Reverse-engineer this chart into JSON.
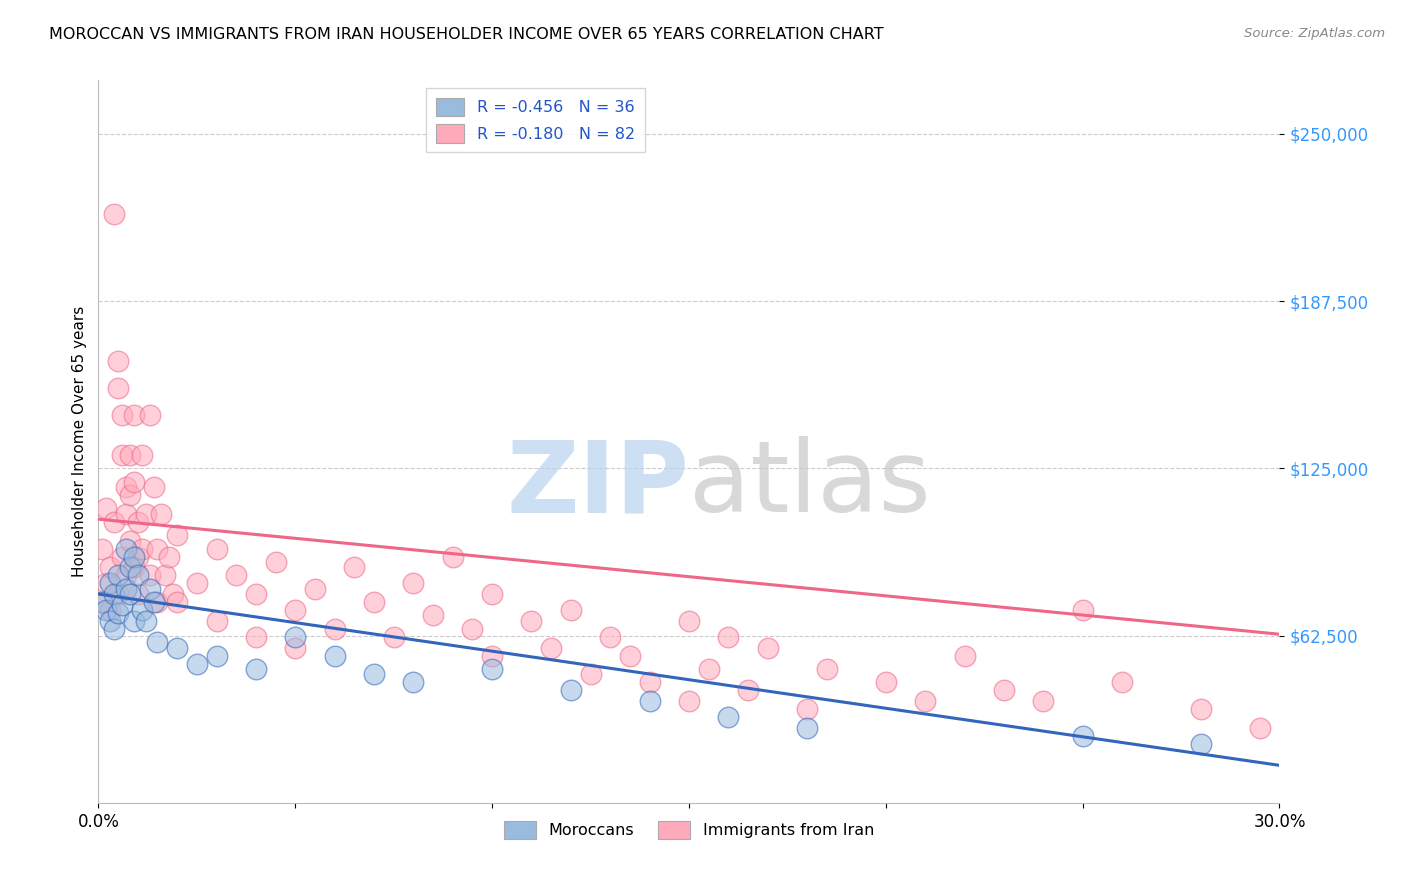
{
  "title": "MOROCCAN VS IMMIGRANTS FROM IRAN HOUSEHOLDER INCOME OVER 65 YEARS CORRELATION CHART",
  "source": "Source: ZipAtlas.com",
  "ylabel": "Householder Income Over 65 years",
  "yticks": [
    62500,
    125000,
    187500,
    250000
  ],
  "ytick_labels": [
    "$62,500",
    "$125,000",
    "$187,500",
    "$250,000"
  ],
  "xlim": [
    0.0,
    0.3
  ],
  "ylim": [
    0,
    270000
  ],
  "legend_blue_R": "R = -0.456",
  "legend_blue_N": "N = 36",
  "legend_pink_R": "R = -0.180",
  "legend_pink_N": "N = 82",
  "blue_color": "#99bbdd",
  "pink_color": "#ffaabb",
  "blue_line_color": "#3366bb",
  "pink_line_color": "#ee6688",
  "blue_reg": [
    0.0,
    0.3,
    78000,
    14000
  ],
  "pink_reg": [
    0.0,
    0.3,
    106000,
    63000
  ],
  "blue_scatter": [
    [
      0.001,
      75000
    ],
    [
      0.002,
      72000
    ],
    [
      0.003,
      68000
    ],
    [
      0.003,
      82000
    ],
    [
      0.004,
      78000
    ],
    [
      0.004,
      65000
    ],
    [
      0.005,
      71000
    ],
    [
      0.005,
      85000
    ],
    [
      0.006,
      74000
    ],
    [
      0.007,
      80000
    ],
    [
      0.007,
      95000
    ],
    [
      0.008,
      88000
    ],
    [
      0.008,
      78000
    ],
    [
      0.009,
      92000
    ],
    [
      0.009,
      68000
    ],
    [
      0.01,
      85000
    ],
    [
      0.011,
      72000
    ],
    [
      0.012,
      68000
    ],
    [
      0.013,
      80000
    ],
    [
      0.014,
      75000
    ],
    [
      0.015,
      60000
    ],
    [
      0.02,
      58000
    ],
    [
      0.025,
      52000
    ],
    [
      0.03,
      55000
    ],
    [
      0.04,
      50000
    ],
    [
      0.05,
      62000
    ],
    [
      0.06,
      55000
    ],
    [
      0.07,
      48000
    ],
    [
      0.08,
      45000
    ],
    [
      0.1,
      50000
    ],
    [
      0.12,
      42000
    ],
    [
      0.14,
      38000
    ],
    [
      0.16,
      32000
    ],
    [
      0.18,
      28000
    ],
    [
      0.25,
      25000
    ],
    [
      0.28,
      22000
    ]
  ],
  "pink_scatter": [
    [
      0.001,
      95000
    ],
    [
      0.001,
      75000
    ],
    [
      0.002,
      110000
    ],
    [
      0.002,
      82000
    ],
    [
      0.003,
      88000
    ],
    [
      0.003,
      72000
    ],
    [
      0.004,
      220000
    ],
    [
      0.004,
      105000
    ],
    [
      0.005,
      165000
    ],
    [
      0.005,
      78000
    ],
    [
      0.005,
      155000
    ],
    [
      0.006,
      145000
    ],
    [
      0.006,
      92000
    ],
    [
      0.006,
      130000
    ],
    [
      0.007,
      118000
    ],
    [
      0.007,
      85000
    ],
    [
      0.007,
      108000
    ],
    [
      0.008,
      98000
    ],
    [
      0.008,
      115000
    ],
    [
      0.008,
      130000
    ],
    [
      0.009,
      145000
    ],
    [
      0.009,
      88000
    ],
    [
      0.009,
      120000
    ],
    [
      0.01,
      105000
    ],
    [
      0.01,
      92000
    ],
    [
      0.01,
      78000
    ],
    [
      0.011,
      130000
    ],
    [
      0.011,
      95000
    ],
    [
      0.012,
      108000
    ],
    [
      0.013,
      85000
    ],
    [
      0.013,
      145000
    ],
    [
      0.014,
      118000
    ],
    [
      0.015,
      95000
    ],
    [
      0.015,
      75000
    ],
    [
      0.016,
      108000
    ],
    [
      0.017,
      85000
    ],
    [
      0.018,
      92000
    ],
    [
      0.019,
      78000
    ],
    [
      0.02,
      100000
    ],
    [
      0.02,
      75000
    ],
    [
      0.025,
      82000
    ],
    [
      0.03,
      95000
    ],
    [
      0.03,
      68000
    ],
    [
      0.035,
      85000
    ],
    [
      0.04,
      78000
    ],
    [
      0.04,
      62000
    ],
    [
      0.045,
      90000
    ],
    [
      0.05,
      72000
    ],
    [
      0.05,
      58000
    ],
    [
      0.055,
      80000
    ],
    [
      0.06,
      65000
    ],
    [
      0.065,
      88000
    ],
    [
      0.07,
      75000
    ],
    [
      0.075,
      62000
    ],
    [
      0.08,
      82000
    ],
    [
      0.085,
      70000
    ],
    [
      0.09,
      92000
    ],
    [
      0.095,
      65000
    ],
    [
      0.1,
      78000
    ],
    [
      0.1,
      55000
    ],
    [
      0.11,
      68000
    ],
    [
      0.115,
      58000
    ],
    [
      0.12,
      72000
    ],
    [
      0.125,
      48000
    ],
    [
      0.13,
      62000
    ],
    [
      0.135,
      55000
    ],
    [
      0.14,
      45000
    ],
    [
      0.15,
      68000
    ],
    [
      0.15,
      38000
    ],
    [
      0.155,
      50000
    ],
    [
      0.16,
      62000
    ],
    [
      0.165,
      42000
    ],
    [
      0.17,
      58000
    ],
    [
      0.18,
      35000
    ],
    [
      0.185,
      50000
    ],
    [
      0.2,
      45000
    ],
    [
      0.21,
      38000
    ],
    [
      0.22,
      55000
    ],
    [
      0.23,
      42000
    ],
    [
      0.24,
      38000
    ],
    [
      0.25,
      72000
    ],
    [
      0.26,
      45000
    ],
    [
      0.28,
      35000
    ],
    [
      0.295,
      28000
    ]
  ]
}
